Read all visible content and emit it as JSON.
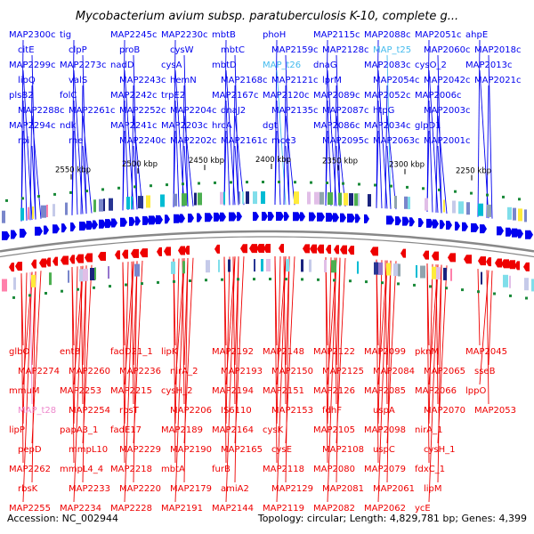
{
  "header": {
    "title": "Mycobacterium avium subsp. paratuberculosis K-10, complete g..."
  },
  "footer": {
    "accession": "Accession: NC_002944",
    "summary": "Topology: circular; Length: 4,829,781 bp; Genes: 4,399"
  },
  "colors": {
    "forward": "#0000ee",
    "reverse": "#ee0000",
    "trna": "#44bbee",
    "pseudo": "#ee88cc",
    "backbone": "#888888"
  },
  "ticks": [
    "2550 kbp",
    "2500 kbp",
    "2450 kbp",
    "2400 kbp",
    "2350 kbp",
    "2300 kbp",
    "2250 kbp"
  ],
  "forward_genes": [
    {
      "label": "MAP2300c",
      "kind": "cds"
    },
    {
      "label": "citE",
      "kind": "cds"
    },
    {
      "label": "MAP2299c",
      "kind": "cds"
    },
    {
      "label": "lipQ",
      "kind": "cds"
    },
    {
      "label": "plsB2",
      "kind": "cds"
    },
    {
      "label": "MAP2288c",
      "kind": "cds"
    },
    {
      "label": "MAP2294c",
      "kind": "cds"
    },
    {
      "label": "rpi",
      "kind": "cds"
    },
    {
      "label": "tig",
      "kind": "cds"
    },
    {
      "label": "clpP",
      "kind": "cds"
    },
    {
      "label": "MAP2273c",
      "kind": "cds"
    },
    {
      "label": "valS",
      "kind": "cds"
    },
    {
      "label": "folC",
      "kind": "cds"
    },
    {
      "label": "MAP2261c",
      "kind": "cds"
    },
    {
      "label": "ndk",
      "kind": "cds"
    },
    {
      "label": "rne",
      "kind": "cds"
    },
    {
      "label": "MAP2245c",
      "kind": "cds"
    },
    {
      "label": "proB",
      "kind": "cds"
    },
    {
      "label": "nadD",
      "kind": "cds"
    },
    {
      "label": "MAP2243c",
      "kind": "cds"
    },
    {
      "label": "MAP2242c",
      "kind": "cds"
    },
    {
      "label": "MAP2252c",
      "kind": "cds"
    },
    {
      "label": "MAP2241c",
      "kind": "cds"
    },
    {
      "label": "MAP2240c",
      "kind": "cds"
    },
    {
      "label": "MAP2230c",
      "kind": "cds"
    },
    {
      "label": "cysW",
      "kind": "cds"
    },
    {
      "label": "cysA",
      "kind": "cds"
    },
    {
      "label": "hemN",
      "kind": "cds"
    },
    {
      "label": "trpE2",
      "kind": "cds"
    },
    {
      "label": "MAP2204c",
      "kind": "cds"
    },
    {
      "label": "MAP2203c",
      "kind": "cds"
    },
    {
      "label": "MAP2202c",
      "kind": "cds"
    },
    {
      "label": "mbtB",
      "kind": "cds"
    },
    {
      "label": "mbtC",
      "kind": "cds"
    },
    {
      "label": "mbtD",
      "kind": "cds"
    },
    {
      "label": "MAP2168c",
      "kind": "cds"
    },
    {
      "label": "MAP2167c",
      "kind": "cds"
    },
    {
      "label": "dnaJ2",
      "kind": "cds"
    },
    {
      "label": "hrcA",
      "kind": "cds"
    },
    {
      "label": "MAP2161c",
      "kind": "cds"
    },
    {
      "label": "phoH",
      "kind": "cds"
    },
    {
      "label": "MAP2159c",
      "kind": "cds"
    },
    {
      "label": "MAP_t26",
      "kind": "trna"
    },
    {
      "label": "MAP2121c",
      "kind": "cds"
    },
    {
      "label": "MAP2120c",
      "kind": "cds"
    },
    {
      "label": "MAP2135c",
      "kind": "cds"
    },
    {
      "label": "dgt",
      "kind": "cds"
    },
    {
      "label": "mce3",
      "kind": "cds"
    },
    {
      "label": "MAP2115c",
      "kind": "cds"
    },
    {
      "label": "MAP2128c",
      "kind": "cds"
    },
    {
      "label": "dnaG",
      "kind": "cds"
    },
    {
      "label": "lprM",
      "kind": "cds"
    },
    {
      "label": "MAP2089c",
      "kind": "cds"
    },
    {
      "label": "MAP2087c",
      "kind": "cds"
    },
    {
      "label": "MAP2086c",
      "kind": "cds"
    },
    {
      "label": "MAP2095c",
      "kind": "cds"
    },
    {
      "label": "MAP2088c",
      "kind": "cds"
    },
    {
      "label": "MAP_t25",
      "kind": "trna"
    },
    {
      "label": "MAP2083c",
      "kind": "cds"
    },
    {
      "label": "MAP2054c",
      "kind": "cds"
    },
    {
      "label": "MAP2052c",
      "kind": "cds"
    },
    {
      "label": "htpG",
      "kind": "cds"
    },
    {
      "label": "MAP2034c",
      "kind": "cds"
    },
    {
      "label": "MAP2063c",
      "kind": "cds"
    },
    {
      "label": "MAP2051c",
      "kind": "cds"
    },
    {
      "label": "MAP2060c",
      "kind": "cds"
    },
    {
      "label": "cysO_2",
      "kind": "cds"
    },
    {
      "label": "MAP2042c",
      "kind": "cds"
    },
    {
      "label": "MAP2006c",
      "kind": "cds"
    },
    {
      "label": "MAP2003c",
      "kind": "cds"
    },
    {
      "label": "glpD1",
      "kind": "cds"
    },
    {
      "label": "MAP2001c",
      "kind": "cds"
    },
    {
      "label": "ahpE",
      "kind": "cds"
    },
    {
      "label": "MAP2018c",
      "kind": "cds"
    },
    {
      "label": "MAP2013c",
      "kind": "cds"
    },
    {
      "label": "MAP2021c",
      "kind": "cds"
    }
  ],
  "reverse_genes": [
    {
      "label": "glbO",
      "kind": "cds"
    },
    {
      "label": "MAP2274",
      "kind": "cds"
    },
    {
      "label": "mmuM",
      "kind": "cds"
    },
    {
      "label": "MAP_t28",
      "kind": "pseudo"
    },
    {
      "label": "lipP",
      "kind": "cds"
    },
    {
      "label": "pepD",
      "kind": "cds"
    },
    {
      "label": "MAP2262",
      "kind": "cds"
    },
    {
      "label": "rbsK",
      "kind": "cds"
    },
    {
      "label": "MAP2255",
      "kind": "cds"
    },
    {
      "label": "entB",
      "kind": "cds"
    },
    {
      "label": "MAP2260",
      "kind": "cds"
    },
    {
      "label": "MAP2253",
      "kind": "cds"
    },
    {
      "label": "MAP2254",
      "kind": "cds"
    },
    {
      "label": "papA3_1",
      "kind": "cds"
    },
    {
      "label": "mmpL10",
      "kind": "cds"
    },
    {
      "label": "mmpL4_4",
      "kind": "cds"
    },
    {
      "label": "MAP2233",
      "kind": "cds"
    },
    {
      "label": "MAP2234",
      "kind": "cds"
    },
    {
      "label": "fadD21_1",
      "kind": "cds"
    },
    {
      "label": "MAP2236",
      "kind": "cds"
    },
    {
      "label": "MAP2215",
      "kind": "cds"
    },
    {
      "label": "rpsT",
      "kind": "cds"
    },
    {
      "label": "fadE17",
      "kind": "cds"
    },
    {
      "label": "MAP2229",
      "kind": "cds"
    },
    {
      "label": "MAP2218",
      "kind": "cds"
    },
    {
      "label": "MAP2220",
      "kind": "cds"
    },
    {
      "label": "MAP2228",
      "kind": "cds"
    },
    {
      "label": "lipK",
      "kind": "cds"
    },
    {
      "label": "nirA_2",
      "kind": "cds"
    },
    {
      "label": "cysH_2",
      "kind": "cds"
    },
    {
      "label": "MAP2206",
      "kind": "cds"
    },
    {
      "label": "MAP2189",
      "kind": "cds"
    },
    {
      "label": "MAP2190",
      "kind": "cds"
    },
    {
      "label": "mbtA",
      "kind": "cds"
    },
    {
      "label": "MAP2179",
      "kind": "cds"
    },
    {
      "label": "MAP2191",
      "kind": "cds"
    },
    {
      "label": "MAP2192",
      "kind": "cds"
    },
    {
      "label": "MAP2193",
      "kind": "cds"
    },
    {
      "label": "MAP2194",
      "kind": "cds"
    },
    {
      "label": "IS6110",
      "kind": "cds"
    },
    {
      "label": "MAP2164",
      "kind": "cds"
    },
    {
      "label": "MAP2165",
      "kind": "cds"
    },
    {
      "label": "furB",
      "kind": "cds"
    },
    {
      "label": "amiA2",
      "kind": "cds"
    },
    {
      "label": "MAP2144",
      "kind": "cds"
    },
    {
      "label": "MAP2148",
      "kind": "cds"
    },
    {
      "label": "MAP2150",
      "kind": "cds"
    },
    {
      "label": "MAP2151",
      "kind": "cds"
    },
    {
      "label": "MAP2153",
      "kind": "cds"
    },
    {
      "label": "cysK",
      "kind": "cds"
    },
    {
      "label": "cysE",
      "kind": "cds"
    },
    {
      "label": "MAP2118",
      "kind": "cds"
    },
    {
      "label": "MAP2129",
      "kind": "cds"
    },
    {
      "label": "MAP2119",
      "kind": "cds"
    },
    {
      "label": "MAP2122",
      "kind": "cds"
    },
    {
      "label": "MAP2125",
      "kind": "cds"
    },
    {
      "label": "MAP2126",
      "kind": "cds"
    },
    {
      "label": "fdhF",
      "kind": "cds"
    },
    {
      "label": "MAP2105",
      "kind": "cds"
    },
    {
      "label": "MAP2108",
      "kind": "cds"
    },
    {
      "label": "MAP2080",
      "kind": "cds"
    },
    {
      "label": "MAP2081",
      "kind": "cds"
    },
    {
      "label": "MAP2082",
      "kind": "cds"
    },
    {
      "label": "MAP2099",
      "kind": "cds"
    },
    {
      "label": "MAP2084",
      "kind": "cds"
    },
    {
      "label": "MAP2085",
      "kind": "cds"
    },
    {
      "label": "uspA",
      "kind": "cds"
    },
    {
      "label": "MAP2098",
      "kind": "cds"
    },
    {
      "label": "uspC",
      "kind": "cds"
    },
    {
      "label": "MAP2079",
      "kind": "cds"
    },
    {
      "label": "MAP2061",
      "kind": "cds"
    },
    {
      "label": "MAP2062",
      "kind": "cds"
    },
    {
      "label": "pknM",
      "kind": "cds"
    },
    {
      "label": "MAP2065",
      "kind": "cds"
    },
    {
      "label": "MAP2066",
      "kind": "cds"
    },
    {
      "label": "MAP2070",
      "kind": "cds"
    },
    {
      "label": "nirA_1",
      "kind": "cds"
    },
    {
      "label": "cysH_1",
      "kind": "cds"
    },
    {
      "label": "fdxC_1",
      "kind": "cds"
    },
    {
      "label": "lipM",
      "kind": "cds"
    },
    {
      "label": "ycE",
      "kind": "cds"
    },
    {
      "label": "MAP2045",
      "kind": "cds"
    },
    {
      "label": "sseB",
      "kind": "cds"
    },
    {
      "label": "lppO",
      "kind": "cds"
    },
    {
      "label": "MAP2053",
      "kind": "cds"
    }
  ]
}
